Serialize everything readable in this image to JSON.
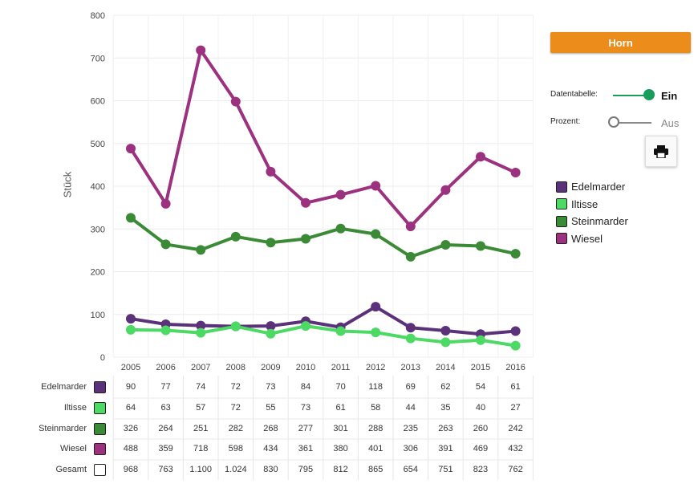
{
  "controls": {
    "horn_label": "Horn",
    "datentabelle_label": "Datentabelle:",
    "datentabelle_state": "Ein",
    "prozent_label": "Prozent:",
    "prozent_state": "Aus",
    "print_icon": "print-icon",
    "toggle_on_color": "#1a9c5b",
    "accent_color": "#ec8c1a"
  },
  "chart_data": {
    "type": "line",
    "ylabel": "Stück",
    "xlabel": "",
    "ylim": [
      0,
      800
    ],
    "yticks": [
      0,
      100,
      200,
      300,
      400,
      500,
      600,
      700,
      800
    ],
    "grid": true,
    "legend_position": "right",
    "categories": [
      "2005",
      "2006",
      "2007",
      "2008",
      "2009",
      "2010",
      "2011",
      "2012",
      "2013",
      "2014",
      "2015",
      "2016"
    ],
    "series": [
      {
        "name": "Edelmarder",
        "color": "#5b3279",
        "values": [
          90,
          77,
          74,
          72,
          73,
          84,
          70,
          118,
          69,
          62,
          54,
          61
        ]
      },
      {
        "name": "Iltisse",
        "color": "#4cd964",
        "values": [
          64,
          63,
          57,
          72,
          55,
          73,
          61,
          58,
          44,
          35,
          40,
          27
        ]
      },
      {
        "name": "Steinmarder",
        "color": "#3b8a36",
        "values": [
          326,
          264,
          251,
          282,
          268,
          277,
          301,
          288,
          235,
          263,
          260,
          242
        ]
      },
      {
        "name": "Wiesel",
        "color": "#9c3180",
        "values": [
          488,
          359,
          718,
          598,
          434,
          361,
          380,
          401,
          306,
          391,
          469,
          432
        ]
      }
    ]
  },
  "table": {
    "total_label": "Gesamt",
    "total_color": "#ffffff",
    "rows": [
      {
        "label": "Edelmarder",
        "color": "#5b3279",
        "cells": [
          "90",
          "77",
          "74",
          "72",
          "73",
          "84",
          "70",
          "118",
          "69",
          "62",
          "54",
          "61"
        ]
      },
      {
        "label": "Iltisse",
        "color": "#4cd964",
        "cells": [
          "64",
          "63",
          "57",
          "72",
          "55",
          "73",
          "61",
          "58",
          "44",
          "35",
          "40",
          "27"
        ]
      },
      {
        "label": "Steinmarder",
        "color": "#3b8a36",
        "cells": [
          "326",
          "264",
          "251",
          "282",
          "268",
          "277",
          "301",
          "288",
          "235",
          "263",
          "260",
          "242"
        ]
      },
      {
        "label": "Wiesel",
        "color": "#9c3180",
        "cells": [
          "488",
          "359",
          "718",
          "598",
          "434",
          "361",
          "380",
          "401",
          "306",
          "391",
          "469",
          "432"
        ]
      },
      {
        "label": "Gesamt",
        "color": "#ffffff",
        "cells": [
          "968",
          "763",
          "1.100",
          "1.024",
          "830",
          "795",
          "812",
          "865",
          "654",
          "751",
          "823",
          "762"
        ]
      }
    ]
  }
}
